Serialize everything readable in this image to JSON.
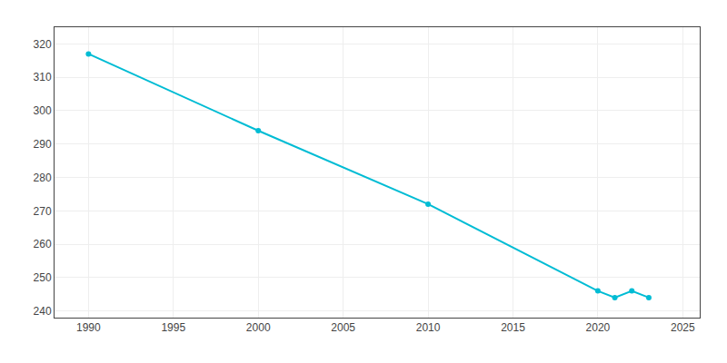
{
  "chart_data": {
    "type": "line",
    "x": [
      1990,
      2000,
      2010,
      2020,
      2021,
      2022,
      2023
    ],
    "values": [
      317,
      294,
      272,
      246,
      244,
      246,
      244
    ],
    "color": "#00bcd4",
    "marker": "circle",
    "xlim": [
      1988,
      2026
    ],
    "ylim": [
      238,
      325
    ],
    "xticks": [
      1990,
      1995,
      2000,
      2005,
      2010,
      2015,
      2020,
      2025
    ],
    "yticks": [
      240,
      250,
      260,
      270,
      280,
      290,
      300,
      310,
      320
    ],
    "grid": true
  }
}
